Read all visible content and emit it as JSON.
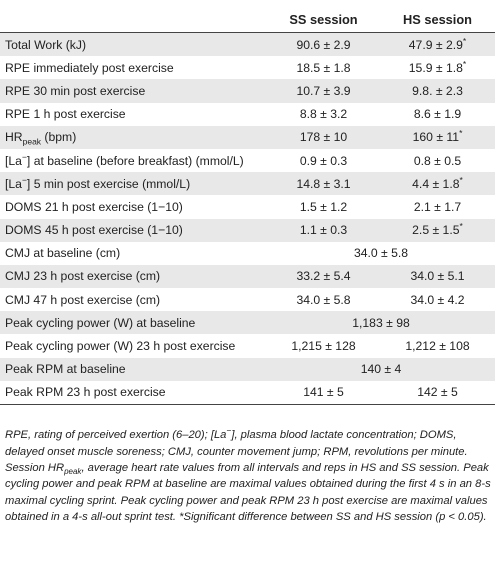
{
  "table": {
    "headers": {
      "label": "",
      "ss": "SS session",
      "hs": "HS session"
    },
    "rows": [
      {
        "pre": "Total Work (kJ)",
        "ss": "90.6 ± 2.9",
        "hs": "47.9 ± 2.9",
        "hs_mark": "*"
      },
      {
        "pre": "RPE immediately post exercise",
        "ss": "18.5 ± 1.8",
        "hs": "15.9 ± 1.8",
        "hs_mark": "*"
      },
      {
        "pre": "RPE 30 min post exercise",
        "ss": "10.7 ± 3.9",
        "hs": "9.8. ± 2.3"
      },
      {
        "pre": "RPE 1 h post exercise",
        "ss": "8.8 ± 3.2",
        "hs": "8.6 ± 1.9"
      },
      {
        "pre": "HR",
        "sub": "peak",
        "post": " (bpm)",
        "ss": "178 ± 10",
        "hs": "160 ± 11",
        "hs_mark": "*"
      },
      {
        "pre": "[La",
        "sup": "−",
        "post": "] at baseline (before breakfast) (mmol/L)",
        "ss": "0.9 ± 0.3",
        "hs": "0.8 ± 0.5"
      },
      {
        "pre": "[La",
        "sup": "−",
        "post": "] 5 min post exercise (mmol/L)",
        "ss": "14.8 ± 3.1",
        "hs": "4.4 ± 1.8",
        "hs_mark": "*"
      },
      {
        "pre": "DOMS 21 h post exercise (1−10)",
        "ss": "1.5 ± 1.2",
        "hs": "2.1 ± 1.7"
      },
      {
        "pre": "DOMS 45 h post exercise (1−10)",
        "ss": "1.1 ± 0.3",
        "hs": "2.5 ± 1.5",
        "hs_mark": "*"
      },
      {
        "pre": "CMJ at baseline (cm)",
        "span": "34.0 ± 5.8"
      },
      {
        "pre": "CMJ 23 h post exercise (cm)",
        "ss": "33.2 ± 5.4",
        "hs": "34.0 ± 5.1"
      },
      {
        "pre": "CMJ 47 h post exercise (cm)",
        "ss": "34.0 ± 5.8",
        "hs": "34.0 ± 4.2"
      },
      {
        "pre": "Peak cycling power (W) at baseline",
        "span": "1,183 ± 98"
      },
      {
        "pre": "Peak cycling power (W) 23 h post exercise",
        "ss": "1,215 ± 128",
        "hs": "1,212 ± 108"
      },
      {
        "pre": "Peak RPM at baseline",
        "span": "140 ± 4"
      },
      {
        "pre": "Peak RPM 23 h post exercise",
        "ss": "141 ± 5",
        "hs": "142 ± 5"
      }
    ]
  },
  "footnote": {
    "p1": "RPE, rating of perceived exertion (6–20); [La",
    "p1_sup": "−",
    "p2": "], plasma blood lactate concentration; DOMS, delayed onset muscle soreness; CMJ, counter movement jump; RPM, revolutions per minute. Session HR",
    "p2_sub": "peak",
    "p3": ", average heart rate values from all intervals and reps in HS and SS session. Peak cycling power and peak RPM at baseline are maximal values obtained during the first 4 s in an 8-s maximal cycling sprint. Peak cycling power and peak RPM 23 h post exercise are maximal values obtained in a 4-s all-out sprint test. *Significant difference between SS and HS session (p < 0.05)."
  }
}
